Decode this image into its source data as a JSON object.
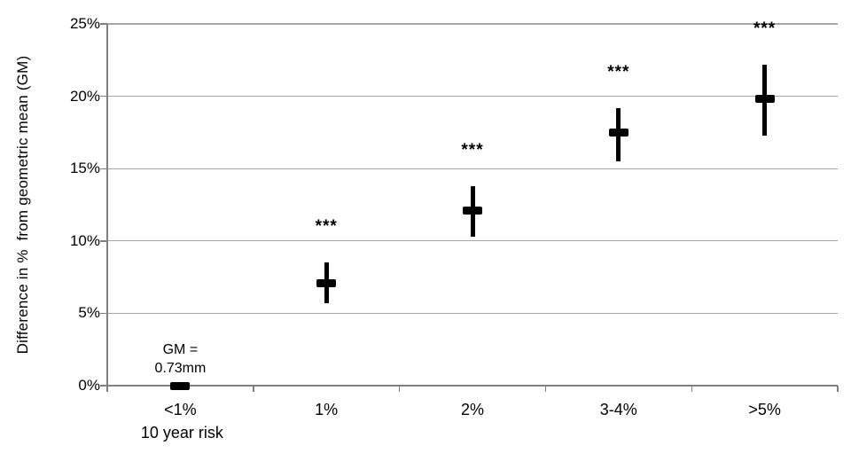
{
  "chart_data": {
    "type": "scatter",
    "subtype": "point-estimates-with-error-bars",
    "title": "",
    "ylabel": "Difference in %  from geometric mean (GM)",
    "xlabel_sub": "10 year risk",
    "categories": [
      "<1%",
      "1%",
      "2%",
      "3-4%",
      ">5%"
    ],
    "series": [
      {
        "name": "Difference in % from geometric mean",
        "values": [
          0,
          7.1,
          12.1,
          17.5,
          19.8
        ],
        "ci_low": [
          0,
          5.7,
          10.3,
          15.5,
          17.3
        ],
        "ci_high": [
          0,
          8.5,
          13.8,
          19.2,
          22.2
        ],
        "significance": [
          "",
          "***",
          "***",
          "***",
          "***"
        ]
      }
    ],
    "annotation": {
      "lines": [
        "GM =",
        "0.73mm"
      ],
      "target_category": "<1%"
    },
    "yticks": [
      "0%",
      "5%",
      "10%",
      "15%",
      "20%",
      "25%"
    ],
    "ytick_values": [
      0,
      5,
      10,
      15,
      20,
      25
    ],
    "ylim": [
      0,
      25
    ],
    "grid": "horizontal",
    "legend": "none",
    "colors": {
      "marker": "#000000",
      "errorbar": "#000000",
      "stars": "#000000",
      "gridline": "#a6a6a6",
      "axis": "#7f7f7f",
      "text": "#000000",
      "background": "#ffffff"
    }
  }
}
